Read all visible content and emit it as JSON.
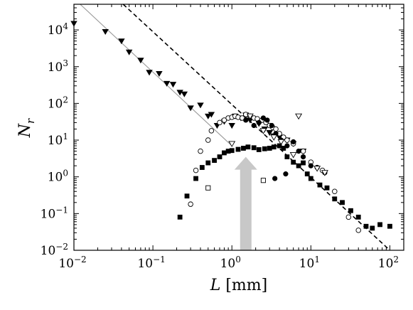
{
  "chart_data": {
    "type": "scatter",
    "title": "",
    "xlabel": "L [mm]",
    "ylabel": "N_r",
    "xscale": "log",
    "yscale": "log",
    "xlim": [
      0.01,
      150
    ],
    "ylim": [
      0.01,
      50000
    ],
    "grid": false,
    "legend": "none",
    "x_tick_labels": [
      "10^-2",
      "10^-1",
      "10^0",
      "10^1",
      "10^2"
    ],
    "y_tick_labels": [
      "10^-2",
      "10^-1",
      "10^0",
      "10^1",
      "10^2",
      "10^3",
      "10^4"
    ],
    "colors": {
      "ink": "#000000",
      "solid_line": "#999999",
      "arrow": "#c8c8c8"
    },
    "series": [
      {
        "marker": "filled-triangle-down",
        "points": [
          [
            0.01,
            15000
          ],
          [
            0.025,
            9000
          ],
          [
            0.04,
            5000
          ],
          [
            0.05,
            2500
          ],
          [
            0.07,
            1500
          ],
          [
            0.09,
            700
          ],
          [
            0.12,
            650
          ],
          [
            0.15,
            350
          ],
          [
            0.18,
            330
          ],
          [
            0.22,
            200
          ],
          [
            0.25,
            180
          ],
          [
            0.3,
            75
          ],
          [
            0.4,
            90
          ],
          [
            0.5,
            45
          ],
          [
            0.55,
            50
          ],
          [
            0.65,
            25
          ],
          [
            0.8,
            32
          ],
          [
            1.0,
            25
          ],
          [
            1.1,
            45
          ],
          [
            1.3,
            40
          ],
          [
            1.5,
            48
          ],
          [
            1.7,
            35
          ],
          [
            2.2,
            28
          ],
          [
            2.6,
            20
          ],
          [
            3.0,
            16
          ],
          [
            3.4,
            13
          ],
          [
            4.0,
            12
          ],
          [
            5.0,
            10
          ],
          [
            6.0,
            8
          ],
          [
            8.0,
            5
          ]
        ]
      },
      {
        "marker": "open-circle",
        "points": [
          [
            0.3,
            0.18
          ],
          [
            0.35,
            1.5
          ],
          [
            0.4,
            5
          ],
          [
            0.5,
            10
          ],
          [
            0.55,
            18
          ],
          [
            0.7,
            30
          ],
          [
            0.8,
            35
          ],
          [
            0.9,
            40
          ],
          [
            1.0,
            42
          ],
          [
            1.1,
            45
          ],
          [
            1.2,
            42
          ],
          [
            1.35,
            40
          ],
          [
            1.5,
            50
          ],
          [
            1.7,
            45
          ],
          [
            1.9,
            40
          ],
          [
            2.1,
            38
          ],
          [
            2.4,
            35
          ],
          [
            2.7,
            30
          ],
          [
            3.0,
            25
          ],
          [
            3.3,
            22
          ],
          [
            3.6,
            20
          ],
          [
            4.0,
            15
          ],
          [
            4.5,
            12
          ],
          [
            5.0,
            10
          ],
          [
            6.0,
            8
          ],
          [
            8.0,
            5
          ],
          [
            10.0,
            2.5
          ],
          [
            14.0,
            1.5
          ],
          [
            20.0,
            0.4
          ],
          [
            30.0,
            0.08
          ],
          [
            40.0,
            0.035
          ]
        ]
      },
      {
        "marker": "filled-circle",
        "points": [
          [
            1.5,
            35
          ],
          [
            1.9,
            25
          ],
          [
            2.2,
            30
          ],
          [
            2.5,
            40
          ],
          [
            2.8,
            35
          ],
          [
            3.2,
            25
          ],
          [
            3.6,
            15
          ],
          [
            4.2,
            10
          ],
          [
            5.0,
            7
          ],
          [
            6.0,
            9
          ],
          [
            7.0,
            5
          ],
          [
            8.0,
            3.5
          ],
          [
            10.0,
            2
          ],
          [
            12.0,
            1.8
          ],
          [
            15.0,
            1.3
          ],
          [
            3.5,
            0.9
          ],
          [
            4.8,
            1.2
          ]
        ]
      },
      {
        "marker": "open-triangle-down",
        "points": [
          [
            1.0,
            8
          ],
          [
            1.7,
            45
          ],
          [
            2.5,
            18
          ],
          [
            3.4,
            12
          ],
          [
            4.2,
            9
          ],
          [
            6.0,
            4
          ],
          [
            7.0,
            45
          ],
          [
            12.0,
            1.7
          ],
          [
            15.0,
            1.3
          ]
        ]
      },
      {
        "marker": "filled-square",
        "points": [
          [
            0.22,
            0.08
          ],
          [
            0.27,
            0.3
          ],
          [
            0.35,
            0.9
          ],
          [
            0.42,
            1.8
          ],
          [
            0.5,
            2.4
          ],
          [
            0.6,
            2.8
          ],
          [
            0.7,
            3.5
          ],
          [
            0.8,
            4.5
          ],
          [
            0.9,
            5
          ],
          [
            1.0,
            5.2
          ],
          [
            1.2,
            5.6
          ],
          [
            1.4,
            6
          ],
          [
            1.6,
            6.5
          ],
          [
            1.9,
            6.2
          ],
          [
            2.2,
            5.5
          ],
          [
            2.6,
            5.8
          ],
          [
            3.0,
            6
          ],
          [
            3.4,
            6.5
          ],
          [
            4.0,
            7
          ],
          [
            4.5,
            6
          ],
          [
            5.0,
            3.5
          ],
          [
            6.0,
            2.5
          ],
          [
            7.0,
            2
          ],
          [
            8.0,
            2.4
          ],
          [
            9.0,
            1.2
          ],
          [
            10.0,
            0.9
          ],
          [
            13.0,
            0.6
          ],
          [
            16.0,
            0.5
          ],
          [
            20.0,
            0.25
          ],
          [
            25.0,
            0.2
          ],
          [
            32.0,
            0.12
          ],
          [
            40.0,
            0.08
          ],
          [
            50.0,
            0.045
          ],
          [
            60.0,
            0.04
          ],
          [
            75.0,
            0.05
          ],
          [
            100.0,
            0.045
          ]
        ]
      },
      {
        "marker": "open-square",
        "points": [
          [
            0.5,
            0.5
          ],
          [
            2.5,
            0.8
          ]
        ]
      }
    ],
    "lines": [
      {
        "style": "dashed",
        "points": [
          [
            0.042,
            50000
          ],
          [
            100,
            0.01
          ]
        ]
      },
      {
        "style": "solid",
        "points": [
          [
            0.012,
            50000
          ],
          [
            1.0,
            7
          ]
        ]
      }
    ],
    "arrow": {
      "x": 1.5,
      "y_from": 0.01,
      "y_to": 3.5,
      "direction": "up"
    }
  }
}
